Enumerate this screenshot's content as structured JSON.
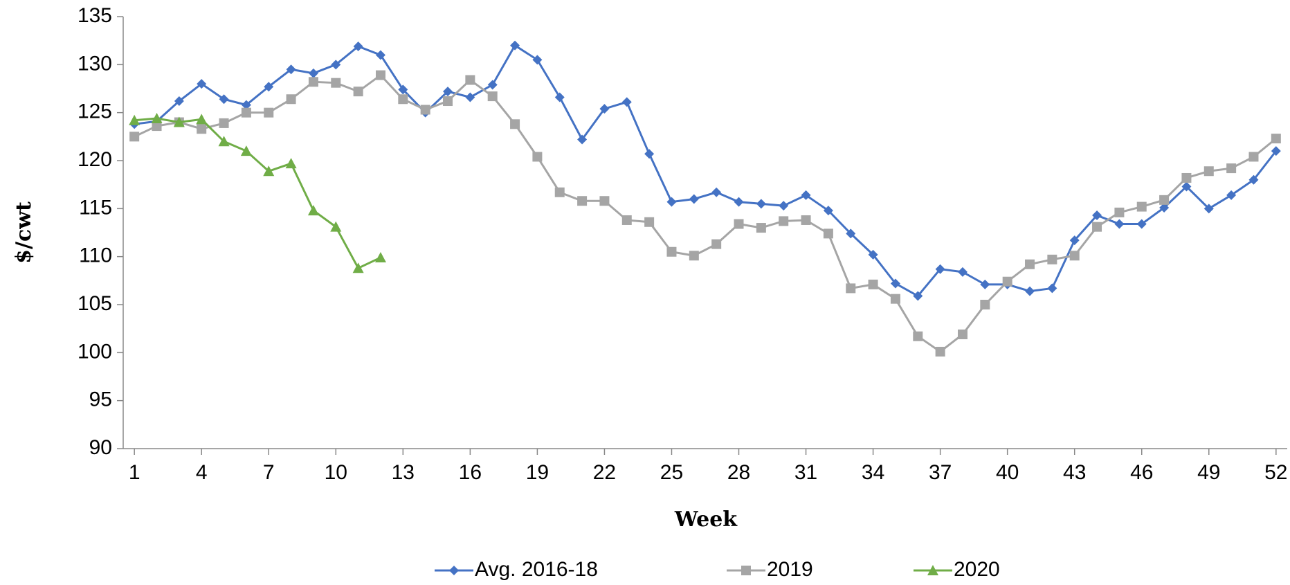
{
  "chart_data": {
    "type": "line",
    "x_label": "Week",
    "y_label": "$/cwt",
    "x": [
      1,
      2,
      3,
      4,
      5,
      6,
      7,
      8,
      9,
      10,
      11,
      12,
      13,
      14,
      15,
      16,
      17,
      18,
      19,
      20,
      21,
      22,
      23,
      24,
      25,
      26,
      27,
      28,
      29,
      30,
      31,
      32,
      33,
      34,
      35,
      36,
      37,
      38,
      39,
      40,
      41,
      42,
      43,
      44,
      45,
      46,
      47,
      48,
      49,
      50,
      51,
      52
    ],
    "xlim": [
      0.5,
      52.5
    ],
    "xticks": [
      1,
      4,
      7,
      10,
      13,
      16,
      19,
      22,
      25,
      28,
      31,
      34,
      37,
      40,
      43,
      46,
      49,
      52
    ],
    "ylim": [
      90,
      135
    ],
    "yticks": [
      90,
      95,
      100,
      105,
      110,
      115,
      120,
      125,
      130,
      135
    ],
    "legend": "bottom",
    "series": [
      {
        "name": "Avg. 2016-18",
        "color": "#4472c4",
        "marker": "diamond",
        "values": [
          123.8,
          124.1,
          126.2,
          128,
          126.4,
          125.8,
          127.7,
          129.5,
          129.1,
          130,
          131.9,
          131,
          127.4,
          125,
          127.2,
          126.6,
          127.9,
          132,
          130.5,
          126.6,
          122.2,
          125.4,
          126.1,
          120.7,
          115.7,
          116,
          116.7,
          115.7,
          115.5,
          115.3,
          116.4,
          114.8,
          112.4,
          110.2,
          107.2,
          105.9,
          108.7,
          108.4,
          107.1,
          107.1,
          106.4,
          106.7,
          111.7,
          114.3,
          113.4,
          113.4,
          115.1,
          117.3,
          115,
          116.4,
          118,
          121
        ]
      },
      {
        "name": "2019",
        "color": "#a5a5a5",
        "marker": "square",
        "values": [
          122.5,
          123.6,
          124,
          123.3,
          123.9,
          125,
          125,
          126.4,
          128.2,
          128.1,
          127.2,
          128.9,
          126.4,
          125.3,
          126.2,
          128.4,
          126.7,
          123.8,
          120.4,
          116.7,
          115.8,
          115.8,
          113.8,
          113.6,
          110.5,
          110.1,
          111.3,
          113.4,
          113,
          113.7,
          113.8,
          112.4,
          106.7,
          107.1,
          105.6,
          101.7,
          100.1,
          101.9,
          105,
          107.4,
          109.2,
          109.7,
          110.1,
          113.1,
          114.6,
          115.2,
          115.9,
          118.2,
          118.9,
          119.2,
          120.4,
          122.3
        ]
      },
      {
        "name": "2020",
        "color": "#70ad47",
        "marker": "triangle",
        "values": [
          124.2,
          124.4,
          124,
          124.3,
          122,
          121,
          118.9,
          119.7,
          114.8,
          113.1,
          108.8,
          109.9,
          null,
          null,
          null,
          null,
          null,
          null,
          null,
          null,
          null,
          null,
          null,
          null,
          null,
          null,
          null,
          null,
          null,
          null,
          null,
          null,
          null,
          null,
          null,
          null,
          null,
          null,
          null,
          null,
          null,
          null,
          null,
          null,
          null,
          null,
          null,
          null,
          null,
          null,
          null,
          null
        ]
      }
    ]
  }
}
